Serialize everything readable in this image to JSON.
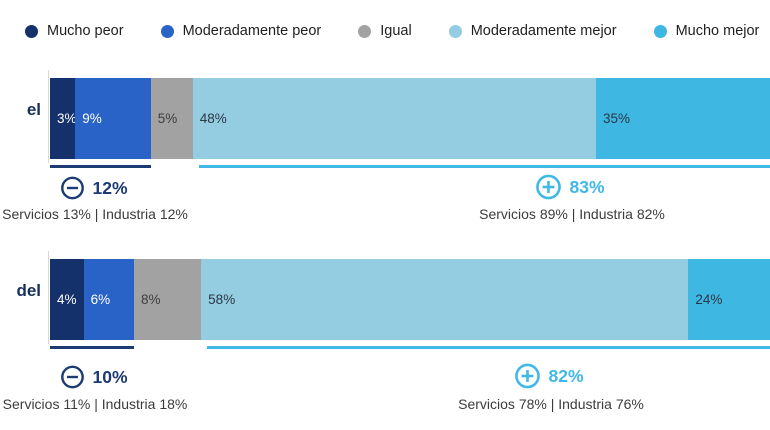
{
  "legend": {
    "items": [
      {
        "label": "Mucho peor",
        "color": "#14316b"
      },
      {
        "label": "Moderadamente peor",
        "color": "#2a63c7"
      },
      {
        "label": "Igual",
        "color": "#a2a2a2"
      },
      {
        "label": "Moderadamente mejor",
        "color": "#94cce2"
      },
      {
        "label": "Mucho mejor",
        "color": "#3eb7e3"
      }
    ]
  },
  "chart_data": {
    "type": "bar",
    "orientation": "horizontal",
    "stacked": true,
    "unit": "%",
    "categories": [
      "el",
      "del"
    ],
    "series": [
      {
        "name": "Mucho peor",
        "color": "#14316b",
        "values": [
          3,
          4
        ]
      },
      {
        "name": "Moderadamente peor",
        "color": "#2a63c7",
        "values": [
          9,
          6
        ]
      },
      {
        "name": "Igual",
        "color": "#a2a2a2",
        "values": [
          5,
          8
        ]
      },
      {
        "name": "Moderadamente mejor",
        "color": "#94cce2",
        "values": [
          48,
          58
        ]
      },
      {
        "name": "Mucho mejor",
        "color": "#3eb7e3",
        "values": [
          35,
          24
        ]
      }
    ],
    "annotations": {
      "negative_color": "#1c3a73",
      "positive_color": "#41b9e6",
      "rows": [
        {
          "negative_total": "12%",
          "positive_total": "83%"
        },
        {
          "negative_total": "10%",
          "positive_total": "82%"
        }
      ]
    },
    "legend_position": "top",
    "grid": false
  },
  "rows": [
    {
      "label": "el",
      "segments": [
        {
          "label": "3%"
        },
        {
          "label": "9%"
        },
        {
          "label": "5%"
        },
        {
          "label": "48%"
        },
        {
          "label": "35%"
        }
      ],
      "negative": {
        "pct": "12%",
        "detail": "Servicios 13% | Industria 12%"
      },
      "positive": {
        "pct": "83%",
        "detail": "Servicios 89% | Industria 82%"
      }
    },
    {
      "label": "del",
      "segments": [
        {
          "label": "4%"
        },
        {
          "label": "6%"
        },
        {
          "label": "8%"
        },
        {
          "label": "58%"
        },
        {
          "label": "24%"
        }
      ],
      "negative": {
        "pct": "10%",
        "detail": "Servicios 11% | Industria 18%"
      },
      "positive": {
        "pct": "82%",
        "detail": "Servicios 78% | Industria 76%"
      }
    }
  ]
}
